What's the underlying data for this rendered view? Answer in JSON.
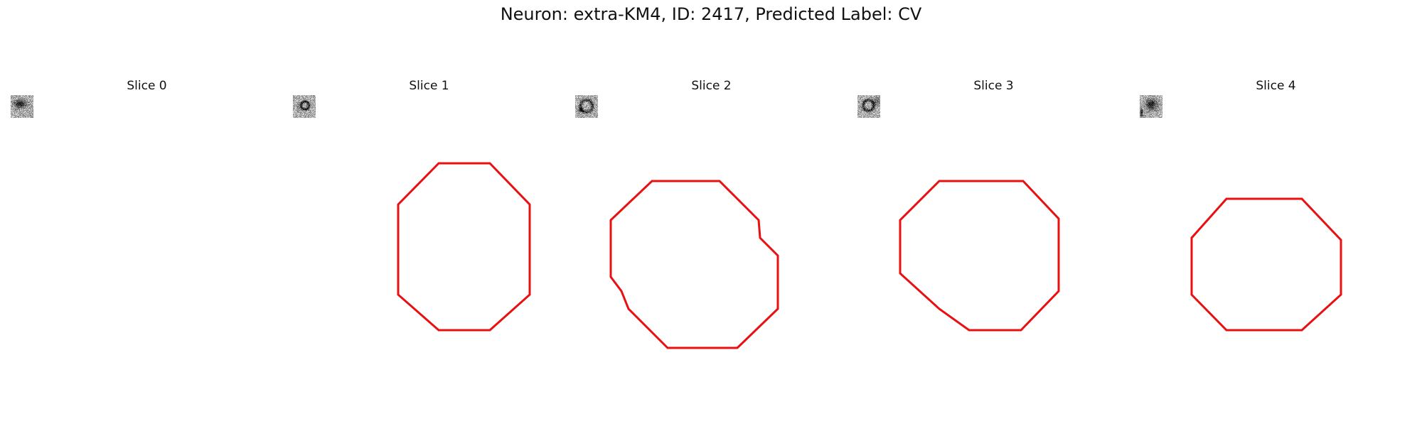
{
  "title": "Neuron: extra-KM4, ID: 2417, Predicted Label: CV",
  "panels": [
    {
      "title": "Slice 0",
      "has_contour": false
    },
    {
      "title": "Slice 1",
      "has_contour": true
    },
    {
      "title": "Slice 2",
      "has_contour": true
    },
    {
      "title": "Slice 3",
      "has_contour": true
    },
    {
      "title": "Slice 4",
      "has_contour": true
    }
  ],
  "colors": {
    "contour": "#e81010",
    "colormap": "gray"
  },
  "grid_size": 32
}
